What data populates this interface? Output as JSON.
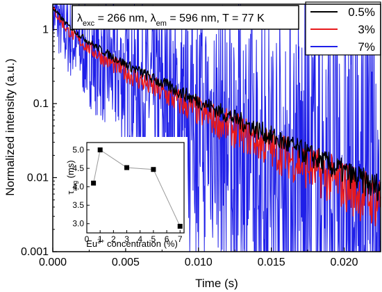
{
  "chart_data": [
    {
      "type": "line",
      "xlabel": "Time (s)",
      "ylabel": "Normalized intensity (a.u.)",
      "xlim": [
        0,
        0.0225
      ],
      "ylim": [
        0.001,
        2.2
      ],
      "yscale": "log",
      "x_ticks": [
        "0.000",
        "0.005",
        "0.010",
        "0.015",
        "0.020"
      ],
      "y_ticks": [
        "0.001",
        "0.01",
        "0.1",
        "1"
      ],
      "annotation": {
        "lambda": "λ",
        "exc_sub": "exc",
        "exc_text": " = 266 nm, ",
        "em_sub": "em",
        "em_text": " = 596 nm, T = 77 K"
      },
      "legend_position": "top-right",
      "series": [
        {
          "name": "0.5%",
          "color": "#000000",
          "x": [
            0,
            0.0005,
            0.001,
            0.002,
            0.003,
            0.004,
            0.005,
            0.006,
            0.007,
            0.008,
            0.009,
            0.01,
            0.011,
            0.012,
            0.013,
            0.014,
            0.015,
            0.016,
            0.017,
            0.018,
            0.019,
            0.02,
            0.021,
            0.022
          ],
          "y": [
            1.95,
            1.5,
            1.15,
            0.8,
            0.58,
            0.44,
            0.34,
            0.27,
            0.21,
            0.17,
            0.135,
            0.108,
            0.087,
            0.07,
            0.056,
            0.045,
            0.036,
            0.029,
            0.023,
            0.0185,
            0.0148,
            0.0118,
            0.0095,
            0.0076
          ]
        },
        {
          "name": "3%",
          "color": "#e8191b",
          "x": [
            0,
            0.0005,
            0.001,
            0.002,
            0.003,
            0.004,
            0.005,
            0.006,
            0.007,
            0.008,
            0.009,
            0.01,
            0.011,
            0.012,
            0.013,
            0.014,
            0.015,
            0.016,
            0.017,
            0.018,
            0.019,
            0.02,
            0.021,
            0.022
          ],
          "y": [
            1.9,
            1.35,
            0.98,
            0.66,
            0.47,
            0.35,
            0.265,
            0.205,
            0.16,
            0.125,
            0.098,
            0.078,
            0.062,
            0.049,
            0.039,
            0.031,
            0.0245,
            0.0195,
            0.0155,
            0.0123,
            0.0098,
            0.0078,
            0.0062,
            0.005
          ]
        },
        {
          "name": "7%",
          "color": "#1f1fe8",
          "x": [
            0,
            0.0005,
            0.001,
            0.002,
            0.003,
            0.004,
            0.005,
            0.006,
            0.007,
            0.008,
            0.009,
            0.01,
            0.011,
            0.012,
            0.013,
            0.014,
            0.015,
            0.016,
            0.017,
            0.018,
            0.019,
            0.02,
            0.021,
            0.022
          ],
          "y": [
            1.85,
            1.2,
            0.85,
            0.56,
            0.4,
            0.3,
            0.225,
            0.172,
            0.133,
            0.103,
            0.08,
            0.063,
            0.05,
            0.039,
            0.031,
            0.0245,
            0.0193,
            0.0152,
            0.012,
            0.0095,
            0.0075,
            0.006,
            0.0048,
            0.0038
          ]
        }
      ]
    },
    {
      "type": "scatter",
      "xlabel_prefix": "Eu",
      "xlabel_sup": "3+",
      "xlabel_suffix": " concentration (%)",
      "ylabel_base": "τ",
      "ylabel_sub": "avg",
      "ylabel_suffix": " (ms)",
      "xlim": [
        0,
        7.3
      ],
      "ylim": [
        2.75,
        5.2
      ],
      "x_ticks": [
        "0",
        "1",
        "2",
        "3",
        "4",
        "5",
        "6",
        "7"
      ],
      "y_ticks": [
        "3.0",
        "3.5",
        "4.0",
        "4.5",
        "5.0"
      ],
      "x": [
        0.5,
        1,
        3,
        5,
        7
      ],
      "y": [
        4.1,
        5.0,
        4.52,
        4.47,
        2.93
      ]
    }
  ]
}
